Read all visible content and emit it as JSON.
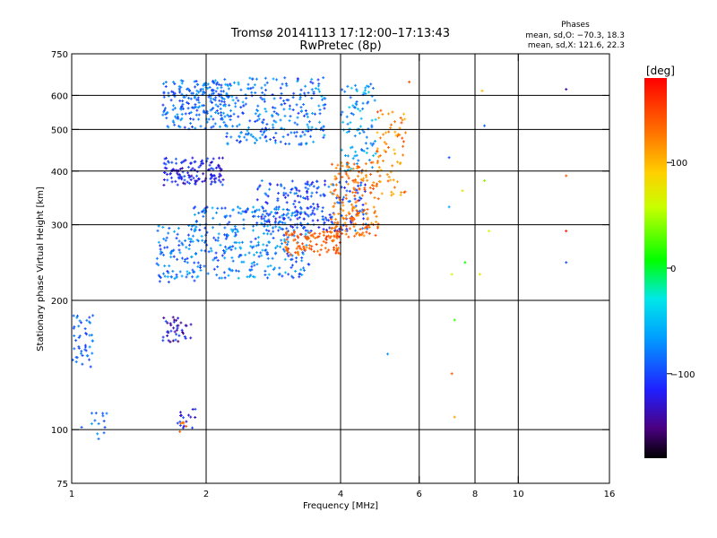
{
  "chart_data": {
    "type": "scatter",
    "title": "Tromsø 20141113 17:12:00–17:13:43",
    "subtitle": "RwPretec (8p)",
    "xlabel": "Frequency [MHz]",
    "ylabel": "Stationary phase Virtual Height [km]",
    "xscale": "log",
    "yscale": "log",
    "xlim": [
      1,
      16
    ],
    "ylim": [
      75,
      750
    ],
    "xticks": [
      1,
      2,
      4,
      6,
      8,
      10,
      16
    ],
    "yticks": [
      75,
      100,
      200,
      300,
      400,
      500,
      600,
      750
    ],
    "grid_x": [
      2,
      4,
      6,
      8,
      10
    ],
    "grid_y": [
      100,
      200,
      300,
      400,
      500,
      600
    ],
    "legend": {
      "title": "Phases",
      "line1": "mean, sd,O: −70.3, 18.3",
      "line2": "mean, sd,X: 121.6, 22.3"
    },
    "colorbar": {
      "label": "[deg]",
      "range": [
        -180,
        180
      ],
      "ticks": [
        100,
        0,
        -100
      ],
      "colormap": "rainbow"
    },
    "clusters": [
      {
        "f": [
          1.0,
          1.12
        ],
        "h": [
          140,
          185
        ],
        "phase": [
          -110,
          -70
        ],
        "n": 45
      },
      {
        "f": [
          1.02,
          1.2
        ],
        "h": [
          92,
          112
        ],
        "phase": [
          -100,
          -60
        ],
        "n": 14
      },
      {
        "f": [
          1.6,
          1.85
        ],
        "h": [
          160,
          185
        ],
        "phase": [
          -160,
          -95
        ],
        "n": 40
      },
      {
        "f": [
          1.55,
          1.9
        ],
        "h": [
          220,
          300
        ],
        "phase": [
          -110,
          -55
        ],
        "n": 90
      },
      {
        "f": [
          1.85,
          3.4
        ],
        "h": [
          225,
          330
        ],
        "phase": [
          -110,
          -50
        ],
        "n": 330
      },
      {
        "f": [
          2.6,
          4.6
        ],
        "h": [
          290,
          380
        ],
        "phase": [
          -125,
          -70
        ],
        "n": 220
      },
      {
        "f": [
          3.0,
          4.0
        ],
        "h": [
          255,
          290
        ],
        "phase": [
          120,
          160
        ],
        "n": 110
      },
      {
        "f": [
          3.8,
          4.9
        ],
        "h": [
          280,
          420
        ],
        "phase": [
          110,
          150
        ],
        "n": 180
      },
      {
        "f": [
          4.8,
          5.6
        ],
        "h": [
          350,
          570
        ],
        "phase": [
          95,
          150
        ],
        "n": 70
      },
      {
        "f": [
          1.6,
          2.2
        ],
        "h": [
          370,
          430
        ],
        "phase": [
          -140,
          -90
        ],
        "n": 130
      },
      {
        "f": [
          1.6,
          2.2
        ],
        "h": [
          500,
          650
        ],
        "phase": [
          -110,
          -60
        ],
        "n": 200
      },
      {
        "f": [
          2.2,
          3.7
        ],
        "h": [
          460,
          660
        ],
        "phase": [
          -110,
          -55
        ],
        "n": 260
      },
      {
        "f": [
          4.0,
          4.8
        ],
        "h": [
          400,
          640
        ],
        "phase": [
          -90,
          -40
        ],
        "n": 90
      },
      {
        "f": [
          1.72,
          1.9
        ],
        "h": [
          100,
          112
        ],
        "phase": [
          -140,
          -90
        ],
        "n": 16
      },
      {
        "f": [
          1.72,
          1.82
        ],
        "h": [
          98,
          104
        ],
        "phase": [
          120,
          150
        ],
        "n": 6
      }
    ],
    "sparse_points": [
      {
        "f": 7.0,
        "h": 430,
        "phase": -100
      },
      {
        "f": 7.0,
        "h": 330,
        "phase": -60
      },
      {
        "f": 7.1,
        "h": 230,
        "phase": 60
      },
      {
        "f": 7.2,
        "h": 180,
        "phase": 20
      },
      {
        "f": 7.1,
        "h": 135,
        "phase": 140
      },
      {
        "f": 7.2,
        "h": 107,
        "phase": 110
      },
      {
        "f": 7.5,
        "h": 360,
        "phase": 80
      },
      {
        "f": 7.6,
        "h": 245,
        "phase": 10
      },
      {
        "f": 8.3,
        "h": 615,
        "phase": 100
      },
      {
        "f": 8.4,
        "h": 510,
        "phase": -90
      },
      {
        "f": 8.4,
        "h": 380,
        "phase": 40
      },
      {
        "f": 8.2,
        "h": 230,
        "phase": 80
      },
      {
        "f": 8.6,
        "h": 290,
        "phase": 60
      },
      {
        "f": 12.8,
        "h": 620,
        "phase": -140
      },
      {
        "f": 12.8,
        "h": 390,
        "phase": 140
      },
      {
        "f": 12.8,
        "h": 290,
        "phase": 170
      },
      {
        "f": 12.8,
        "h": 245,
        "phase": -100
      },
      {
        "f": 5.7,
        "h": 645,
        "phase": 145
      },
      {
        "f": 5.1,
        "h": 150,
        "phase": -70
      }
    ]
  }
}
